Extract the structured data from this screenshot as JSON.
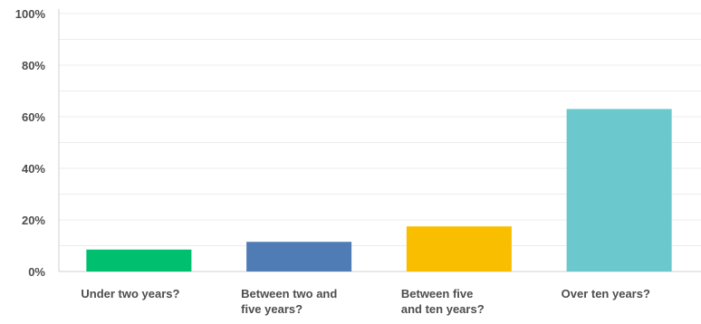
{
  "chart_data": {
    "type": "bar",
    "categories": [
      "Under two years?",
      "Between two and five years?",
      "Between five and ten years?",
      "Over ten years?"
    ],
    "category_lines": [
      [
        "Under two years?"
      ],
      [
        "Between two and",
        "five years?"
      ],
      [
        "Between five",
        "and ten years?"
      ],
      [
        "Over ten years?"
      ]
    ],
    "values": [
      8.5,
      11.5,
      17.5,
      63
    ],
    "colors": [
      "#00bf6f",
      "#507cb6",
      "#f9be00",
      "#6bc8cd"
    ],
    "ylim": [
      0,
      100
    ],
    "yticks": [
      0,
      20,
      40,
      60,
      80,
      100
    ],
    "ytick_labels": [
      "0%",
      "20%",
      "40%",
      "60%",
      "80%",
      "100%"
    ],
    "grid": true,
    "title": "",
    "xlabel": "",
    "ylabel": ""
  }
}
